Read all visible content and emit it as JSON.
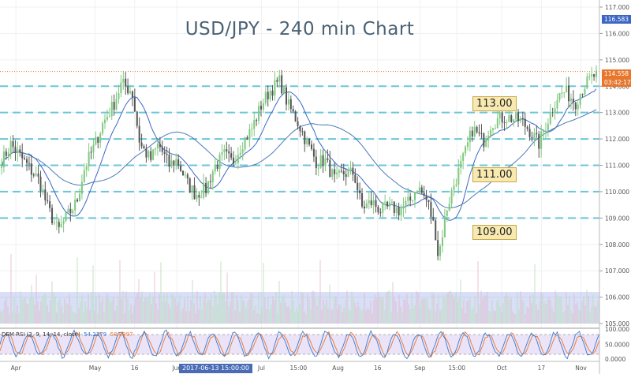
{
  "title": "USD/JPY - 240 min Chart",
  "colors": {
    "bull": "#7fc97f",
    "bear": "#555555",
    "ma_fast": "#3b66c4",
    "ma_slow": "#4a7ab8",
    "level_line": "#6cc6d8",
    "volume": "#8fa4e8",
    "rsi_fast": "#3a7bd5",
    "rsi_slow": "#e8772e",
    "rsi_band": "#e6dcf5",
    "price_tag_current": "#e8772e",
    "price_tag_countdown": "#e8772e",
    "price_tag_high": "#3b66c4",
    "cursor_time": "#4a6bb5"
  },
  "levels": [
    {
      "value": 113.0,
      "label": "113.00"
    },
    {
      "value": 111.0,
      "label": "111.00"
    },
    {
      "value": 109.0,
      "label": "109.00"
    }
  ],
  "price_tags": {
    "high": "116.583",
    "current": "114.558",
    "countdown": "03:42:17"
  },
  "rsi_legend": {
    "label": "DEM RSI (3, 9, 14, 14, close)",
    "value1": "54.2379",
    "value2": "58.8997"
  },
  "cursor_time": "2017-06-13 15:00:00",
  "chart_data": {
    "type": "candlestick",
    "title": "USD/JPY - 240 min Chart",
    "ylim": [
      105.0,
      117.0
    ],
    "y_ticks": [
      "117.000",
      "116.000",
      "115.000",
      "114.000",
      "113.000",
      "112.000",
      "111.000",
      "110.000",
      "109.000",
      "108.000",
      "107.000",
      "106.000",
      "105.000"
    ],
    "rsi_y_ticks": [
      "100.000",
      "50.0000",
      "0.0000"
    ],
    "x_ticks": [
      "Apr",
      "May",
      "16",
      "Jun",
      "Jul",
      "15:00",
      "Aug",
      "16",
      "Sep",
      "15:00",
      "Oct",
      "17",
      "Nov"
    ],
    "price_path": [
      [
        "2017-03-27",
        111.2
      ],
      [
        "2017-03-30",
        111.8
      ],
      [
        "2017-04-03",
        111.3
      ],
      [
        "2017-04-06",
        110.9
      ],
      [
        "2017-04-10",
        110.4
      ],
      [
        "2017-04-13",
        109.4
      ],
      [
        "2017-04-17",
        108.5
      ],
      [
        "2017-04-20",
        109.0
      ],
      [
        "2017-04-24",
        109.6
      ],
      [
        "2017-04-27",
        110.9
      ],
      [
        "2017-05-01",
        111.8
      ],
      [
        "2017-05-04",
        112.6
      ],
      [
        "2017-05-08",
        113.3
      ],
      [
        "2017-05-11",
        114.1
      ],
      [
        "2017-05-15",
        113.8
      ],
      [
        "2017-05-18",
        111.8
      ],
      [
        "2017-05-22",
        111.2
      ],
      [
        "2017-05-25",
        111.8
      ],
      [
        "2017-05-29",
        111.0
      ],
      [
        "2017-06-01",
        111.2
      ],
      [
        "2017-06-05",
        110.3
      ],
      [
        "2017-06-08",
        109.9
      ],
      [
        "2017-06-12",
        110.1
      ],
      [
        "2017-06-15",
        110.9
      ],
      [
        "2017-06-19",
        111.4
      ],
      [
        "2017-06-22",
        111.1
      ],
      [
        "2017-06-26",
        111.9
      ],
      [
        "2017-06-29",
        112.3
      ],
      [
        "2017-07-03",
        113.3
      ],
      [
        "2017-07-06",
        113.8
      ],
      [
        "2017-07-10",
        114.2
      ],
      [
        "2017-07-13",
        113.3
      ],
      [
        "2017-07-17",
        112.6
      ],
      [
        "2017-07-20",
        111.9
      ],
      [
        "2017-07-24",
        111.1
      ],
      [
        "2017-07-27",
        111.2
      ],
      [
        "2017-07-31",
        110.4
      ],
      [
        "2017-08-03",
        110.7
      ],
      [
        "2017-08-07",
        110.7
      ],
      [
        "2017-08-10",
        109.4
      ],
      [
        "2017-08-14",
        109.6
      ],
      [
        "2017-08-17",
        109.3
      ],
      [
        "2017-08-21",
        109.4
      ],
      [
        "2017-08-24",
        109.3
      ],
      [
        "2017-08-28",
        109.6
      ],
      [
        "2017-08-31",
        110.2
      ],
      [
        "2017-09-04",
        109.6
      ],
      [
        "2017-09-07",
        108.4
      ],
      [
        "2017-09-08",
        107.5
      ],
      [
        "2017-09-11",
        109.3
      ],
      [
        "2017-09-14",
        110.3
      ],
      [
        "2017-09-18",
        111.4
      ],
      [
        "2017-09-21",
        112.4
      ],
      [
        "2017-09-25",
        111.9
      ],
      [
        "2017-09-28",
        112.6
      ],
      [
        "2017-10-02",
        112.8
      ],
      [
        "2017-10-05",
        112.8
      ],
      [
        "2017-10-09",
        112.7
      ],
      [
        "2017-10-12",
        112.4
      ],
      [
        "2017-10-16",
        111.8
      ],
      [
        "2017-10-19",
        112.6
      ],
      [
        "2017-10-23",
        113.6
      ],
      [
        "2017-10-26",
        113.8
      ],
      [
        "2017-10-30",
        113.4
      ],
      [
        "2017-11-02",
        114.0
      ],
      [
        "2017-11-06",
        114.4
      ]
    ]
  }
}
